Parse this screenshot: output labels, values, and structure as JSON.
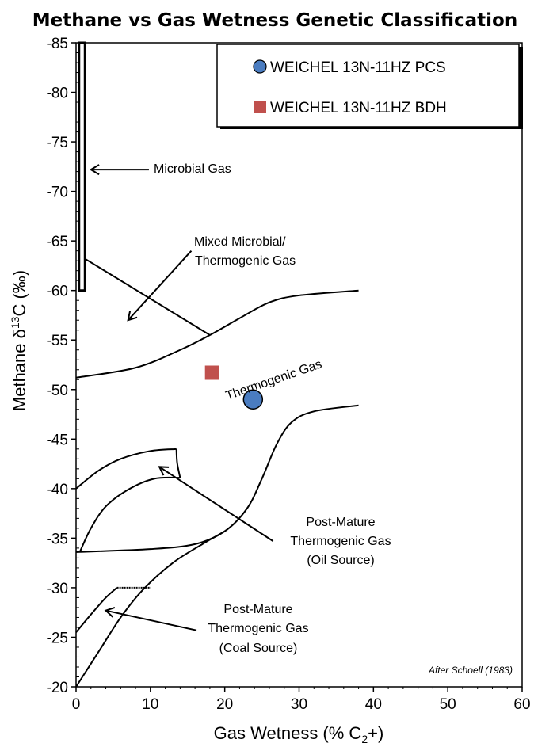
{
  "chart_data": {
    "type": "scatter",
    "title": "Methane vs Gas Wetness Genetic Classification",
    "xlabel": "Gas Wetness (% C",
    "xlabel_sub": "2",
    "xlabel_tail": "+)",
    "ylabel": "Methane  δ",
    "ylabel_sup": "13",
    "ylabel_tail": "C (‰)",
    "xlim": [
      0,
      60
    ],
    "ylim": [
      -20,
      -85
    ],
    "x_ticks": [
      "0",
      "10",
      "20",
      "30",
      "40",
      "50",
      "60"
    ],
    "y_ticks": [
      "-20",
      "-25",
      "-30",
      "-35",
      "-40",
      "-45",
      "-50",
      "-55",
      "-60",
      "-65",
      "-70",
      "-75",
      "-80",
      "-85"
    ],
    "grid": false,
    "legend_position": "top-right",
    "series": [
      {
        "name": "WEICHEL 13N-11HZ PCS",
        "marker": "circle",
        "color": "#4a7cc0",
        "points": [
          {
            "x": 23.8,
            "y": -49
          }
        ]
      },
      {
        "name": "WEICHEL 13N-11HZ BDH",
        "marker": "square",
        "color": "#c0504d",
        "points": [
          {
            "x": 18.3,
            "y": -51.7
          }
        ]
      }
    ],
    "annotations": {
      "microbial": "Microbial Gas",
      "mixed_line1": "Mixed Microbial/",
      "mixed_line2": "Thermogenic Gas",
      "thermogenic": "Thermogenic Gas",
      "post_oil_line1": "Post-Mature",
      "post_oil_line2": "Thermogenic Gas",
      "post_oil_line3": "(Oil Source)",
      "post_coal_line1": "Post-Mature",
      "post_coal_line2": "Thermogenic Gas",
      "post_coal_line3": "(Coal Source)",
      "credit": "After Schoell (1983)"
    },
    "field_boundaries": {
      "microbial_box": [
        [
          0.4,
          -85
        ],
        [
          1.2,
          -85
        ],
        [
          1.2,
          -60
        ],
        [
          0.4,
          -60
        ]
      ],
      "thermogenic_upper": [
        [
          0,
          -51.2
        ],
        [
          8,
          -52.2
        ],
        [
          14,
          -54
        ],
        [
          18,
          -55.5
        ],
        [
          22,
          -57.2
        ],
        [
          26,
          -58.8
        ],
        [
          30,
          -59.5
        ],
        [
          38,
          -60
        ]
      ],
      "mixed_line": [
        [
          1.2,
          -63.2
        ],
        [
          18,
          -55.5
        ]
      ],
      "thermogenic_lower": [
        [
          0,
          -33.6
        ],
        [
          10,
          -33.9
        ],
        [
          16,
          -34.4
        ],
        [
          20,
          -35.7
        ],
        [
          23,
          -38
        ],
        [
          25,
          -41
        ],
        [
          27,
          -44.5
        ],
        [
          29,
          -46.7
        ],
        [
          32,
          -47.8
        ],
        [
          38,
          -48.4
        ]
      ],
      "coal_lower": [
        [
          0,
          -20
        ],
        [
          3,
          -23.5
        ],
        [
          6,
          -27
        ],
        [
          9,
          -29.8
        ],
        [
          13,
          -32.5
        ],
        [
          17,
          -34.4
        ],
        [
          20,
          -35.7
        ]
      ],
      "oil_outer": [
        [
          0,
          -40
        ],
        [
          3,
          -41.8
        ],
        [
          6,
          -43
        ],
        [
          10,
          -43.8
        ],
        [
          13.5,
          -44
        ]
      ],
      "oil_inner": [
        [
          0.5,
          -33.6
        ],
        [
          2,
          -36
        ],
        [
          4,
          -38.2
        ],
        [
          7,
          -39.9
        ],
        [
          10.5,
          -41
        ],
        [
          14,
          -41.1
        ]
      ],
      "oil_right": [
        [
          13.5,
          -44
        ],
        [
          13.6,
          -42.6
        ],
        [
          14,
          -41.1
        ]
      ],
      "coal_outer": [
        [
          0,
          -25.5
        ],
        [
          2,
          -27.3
        ],
        [
          4,
          -29
        ],
        [
          5.5,
          -30
        ]
      ],
      "coal_dashed_top": [
        [
          5.5,
          -30
        ],
        [
          10,
          -30
        ]
      ]
    }
  }
}
